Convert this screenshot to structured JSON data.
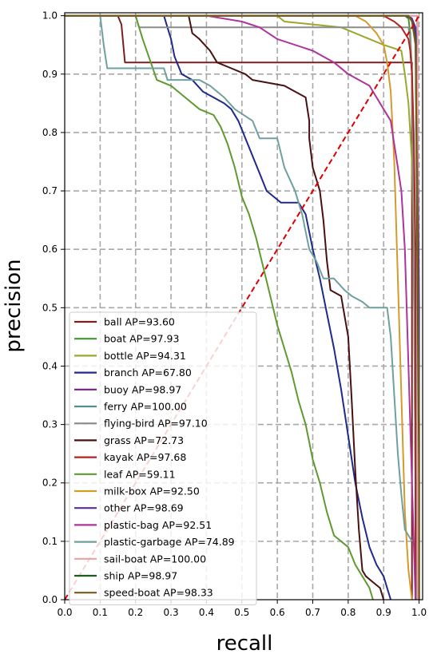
{
  "chart_data": {
    "type": "line",
    "xlabel": "recall",
    "ylabel": "precision",
    "xlim": [
      0,
      1.01
    ],
    "ylim": [
      0,
      1.005
    ],
    "grid": true,
    "legend_position": "lower-left",
    "x_ticks": [
      "0.0",
      "0.1",
      "0.2",
      "0.3",
      "0.4",
      "0.5",
      "0.6",
      "0.7",
      "0.8",
      "0.9",
      "1.0"
    ],
    "y_ticks": [
      "0.0",
      "0.1",
      "0.2",
      "0.3",
      "0.4",
      "0.5",
      "0.6",
      "0.7",
      "0.8",
      "0.9",
      "1.0"
    ],
    "diagonal": {
      "color": "#dd0000",
      "points": [
        [
          0,
          0
        ],
        [
          1,
          1
        ]
      ]
    },
    "series": [
      {
        "name": "ball",
        "legend_label": "ball AP=93.60",
        "color": "#7b1f1f",
        "points": [
          [
            0,
            1.0
          ],
          [
            0.15,
            1.0
          ],
          [
            0.16,
            0.985
          ],
          [
            0.17,
            0.92
          ],
          [
            0.98,
            0.92
          ],
          [
            0.98,
            0.0
          ]
        ]
      },
      {
        "name": "boat",
        "legend_label": "boat AP=97.93",
        "color": "#3c9a2c",
        "points": [
          [
            0,
            1.0
          ],
          [
            0.96,
            1.0
          ],
          [
            0.97,
            0.995
          ],
          [
            0.975,
            0.97
          ],
          [
            0.98,
            0.9
          ],
          [
            0.985,
            0.6
          ],
          [
            0.99,
            0.2
          ],
          [
            0.99,
            0.0
          ]
        ]
      },
      {
        "name": "bottle",
        "legend_label": "bottle AP=94.31",
        "color": "#9aa82b",
        "points": [
          [
            0,
            1.0
          ],
          [
            0.6,
            1.0
          ],
          [
            0.62,
            0.99
          ],
          [
            0.7,
            0.985
          ],
          [
            0.78,
            0.98
          ],
          [
            0.8,
            0.975
          ],
          [
            0.82,
            0.97
          ],
          [
            0.86,
            0.96
          ],
          [
            0.9,
            0.95
          ],
          [
            0.95,
            0.94
          ],
          [
            0.96,
            0.9
          ],
          [
            0.97,
            0.85
          ],
          [
            0.98,
            0.75
          ],
          [
            0.985,
            0.6
          ],
          [
            0.99,
            0.2
          ],
          [
            0.99,
            0.0
          ]
        ]
      },
      {
        "name": "branch",
        "legend_label": "branch AP=67.80",
        "color": "#1f2a8a",
        "points": [
          [
            0,
            1.0
          ],
          [
            0.28,
            1.0
          ],
          [
            0.29,
            0.98
          ],
          [
            0.3,
            0.96
          ],
          [
            0.31,
            0.93
          ],
          [
            0.33,
            0.9
          ],
          [
            0.36,
            0.89
          ],
          [
            0.39,
            0.87
          ],
          [
            0.42,
            0.86
          ],
          [
            0.45,
            0.85
          ],
          [
            0.47,
            0.84
          ],
          [
            0.49,
            0.82
          ],
          [
            0.51,
            0.79
          ],
          [
            0.53,
            0.76
          ],
          [
            0.55,
            0.73
          ],
          [
            0.57,
            0.7
          ],
          [
            0.59,
            0.69
          ],
          [
            0.61,
            0.68
          ],
          [
            0.66,
            0.68
          ],
          [
            0.68,
            0.66
          ],
          [
            0.7,
            0.6
          ],
          [
            0.72,
            0.55
          ],
          [
            0.74,
            0.49
          ],
          [
            0.76,
            0.43
          ],
          [
            0.78,
            0.36
          ],
          [
            0.8,
            0.28
          ],
          [
            0.82,
            0.2
          ],
          [
            0.84,
            0.14
          ],
          [
            0.86,
            0.09
          ],
          [
            0.88,
            0.06
          ],
          [
            0.9,
            0.04
          ],
          [
            0.91,
            0.02
          ],
          [
            0.92,
            0.0
          ]
        ]
      },
      {
        "name": "buoy",
        "legend_label": "buoy AP=98.97",
        "color": "#7a1d8c",
        "points": [
          [
            0,
            1.0
          ],
          [
            0.97,
            1.0
          ],
          [
            0.98,
            0.995
          ],
          [
            0.99,
            0.97
          ],
          [
            0.995,
            0.8
          ],
          [
            1.0,
            0.3
          ],
          [
            1.0,
            0.0
          ]
        ]
      },
      {
        "name": "ferry",
        "legend_label": "ferry AP=100.00",
        "color": "#4f8f8f",
        "points": [
          [
            0,
            1.0
          ],
          [
            0.995,
            1.0
          ],
          [
            0.995,
            0.0
          ]
        ]
      },
      {
        "name": "flying-bird",
        "legend_label": "flying-bird AP=97.10",
        "color": "#8c8c8c",
        "points": [
          [
            0,
            1.0
          ],
          [
            0.2,
            1.0
          ],
          [
            0.21,
            0.98
          ],
          [
            0.97,
            0.98
          ],
          [
            0.975,
            0.96
          ],
          [
            0.98,
            0.9
          ],
          [
            0.985,
            0.6
          ],
          [
            0.99,
            0.2
          ],
          [
            0.99,
            0.0
          ]
        ]
      },
      {
        "name": "grass",
        "legend_label": "grass AP=72.73",
        "color": "#4a1010",
        "points": [
          [
            0,
            1.0
          ],
          [
            0.35,
            1.0
          ],
          [
            0.36,
            0.97
          ],
          [
            0.38,
            0.96
          ],
          [
            0.41,
            0.94
          ],
          [
            0.43,
            0.92
          ],
          [
            0.47,
            0.91
          ],
          [
            0.51,
            0.9
          ],
          [
            0.53,
            0.89
          ],
          [
            0.62,
            0.88
          ],
          [
            0.68,
            0.86
          ],
          [
            0.69,
            0.82
          ],
          [
            0.69,
            0.79
          ],
          [
            0.7,
            0.74
          ],
          [
            0.72,
            0.7
          ],
          [
            0.73,
            0.65
          ],
          [
            0.74,
            0.58
          ],
          [
            0.75,
            0.53
          ],
          [
            0.78,
            0.52
          ],
          [
            0.8,
            0.45
          ],
          [
            0.81,
            0.34
          ],
          [
            0.82,
            0.22
          ],
          [
            0.83,
            0.12
          ],
          [
            0.84,
            0.05
          ],
          [
            0.85,
            0.04
          ],
          [
            0.87,
            0.03
          ],
          [
            0.89,
            0.02
          ],
          [
            0.9,
            0.0
          ]
        ]
      },
      {
        "name": "kayak",
        "legend_label": "kayak AP=97.68",
        "color": "#b22222",
        "points": [
          [
            0,
            1.0
          ],
          [
            0.9,
            1.0
          ],
          [
            0.93,
            0.99
          ],
          [
            0.95,
            0.98
          ],
          [
            0.97,
            0.96
          ],
          [
            0.975,
            0.94
          ],
          [
            0.98,
            0.9
          ],
          [
            0.985,
            0.8
          ],
          [
            0.99,
            0.6
          ],
          [
            0.99,
            0.0
          ]
        ]
      },
      {
        "name": "leaf",
        "legend_label": "leaf AP=59.11",
        "color": "#5f9a30",
        "points": [
          [
            0,
            1.0
          ],
          [
            0.2,
            1.0
          ],
          [
            0.22,
            0.96
          ],
          [
            0.26,
            0.89
          ],
          [
            0.3,
            0.88
          ],
          [
            0.34,
            0.86
          ],
          [
            0.38,
            0.84
          ],
          [
            0.42,
            0.83
          ],
          [
            0.44,
            0.81
          ],
          [
            0.46,
            0.78
          ],
          [
            0.48,
            0.74
          ],
          [
            0.5,
            0.69
          ],
          [
            0.52,
            0.66
          ],
          [
            0.54,
            0.62
          ],
          [
            0.56,
            0.57
          ],
          [
            0.58,
            0.52
          ],
          [
            0.6,
            0.47
          ],
          [
            0.62,
            0.43
          ],
          [
            0.64,
            0.39
          ],
          [
            0.66,
            0.34
          ],
          [
            0.68,
            0.3
          ],
          [
            0.7,
            0.24
          ],
          [
            0.72,
            0.2
          ],
          [
            0.74,
            0.15
          ],
          [
            0.76,
            0.11
          ],
          [
            0.8,
            0.09
          ],
          [
            0.82,
            0.06
          ],
          [
            0.84,
            0.04
          ],
          [
            0.86,
            0.02
          ],
          [
            0.87,
            0.0
          ]
        ]
      },
      {
        "name": "milk-box",
        "legend_label": "milk-box AP=92.50",
        "color": "#d49a2a",
        "points": [
          [
            0,
            1.0
          ],
          [
            0.82,
            1.0
          ],
          [
            0.85,
            0.99
          ],
          [
            0.88,
            0.97
          ],
          [
            0.9,
            0.95
          ],
          [
            0.91,
            0.92
          ],
          [
            0.92,
            0.87
          ],
          [
            0.93,
            0.75
          ],
          [
            0.94,
            0.55
          ],
          [
            0.95,
            0.35
          ],
          [
            0.96,
            0.15
          ],
          [
            0.97,
            0.05
          ],
          [
            0.98,
            0.0
          ]
        ]
      },
      {
        "name": "other",
        "legend_label": "other AP=98.69",
        "color": "#5a2d9c",
        "points": [
          [
            0,
            1.0
          ],
          [
            0.96,
            1.0
          ],
          [
            0.98,
            0.995
          ],
          [
            0.99,
            0.98
          ],
          [
            0.995,
            0.9
          ],
          [
            1.0,
            0.5
          ],
          [
            1.0,
            0.0
          ]
        ]
      },
      {
        "name": "plastic-bag",
        "legend_label": "plastic-bag AP=92.51",
        "color": "#b0329b",
        "points": [
          [
            0,
            1.0
          ],
          [
            0.4,
            1.0
          ],
          [
            0.5,
            0.99
          ],
          [
            0.55,
            0.98
          ],
          [
            0.6,
            0.96
          ],
          [
            0.7,
            0.94
          ],
          [
            0.76,
            0.92
          ],
          [
            0.8,
            0.9
          ],
          [
            0.86,
            0.88
          ],
          [
            0.88,
            0.86
          ],
          [
            0.9,
            0.84
          ],
          [
            0.92,
            0.82
          ],
          [
            0.93,
            0.78
          ],
          [
            0.94,
            0.74
          ],
          [
            0.95,
            0.7
          ],
          [
            0.96,
            0.6
          ],
          [
            0.97,
            0.4
          ],
          [
            0.98,
            0.2
          ],
          [
            0.985,
            0.1
          ],
          [
            0.99,
            0.0
          ]
        ]
      },
      {
        "name": "plastic-garbage",
        "legend_label": "plastic-garbage AP=74.89",
        "color": "#6fa0a0",
        "points": [
          [
            0,
            1.0
          ],
          [
            0.1,
            1.0
          ],
          [
            0.11,
            0.95
          ],
          [
            0.12,
            0.91
          ],
          [
            0.28,
            0.91
          ],
          [
            0.29,
            0.89
          ],
          [
            0.38,
            0.89
          ],
          [
            0.41,
            0.88
          ],
          [
            0.45,
            0.86
          ],
          [
            0.48,
            0.84
          ],
          [
            0.53,
            0.82
          ],
          [
            0.55,
            0.79
          ],
          [
            0.6,
            0.79
          ],
          [
            0.62,
            0.74
          ],
          [
            0.65,
            0.7
          ],
          [
            0.67,
            0.66
          ],
          [
            0.69,
            0.6
          ],
          [
            0.71,
            0.58
          ],
          [
            0.73,
            0.55
          ],
          [
            0.76,
            0.55
          ],
          [
            0.79,
            0.53
          ],
          [
            0.81,
            0.52
          ],
          [
            0.84,
            0.51
          ],
          [
            0.86,
            0.5
          ],
          [
            0.88,
            0.5
          ],
          [
            0.91,
            0.5
          ],
          [
            0.92,
            0.45
          ],
          [
            0.93,
            0.35
          ],
          [
            0.94,
            0.25
          ],
          [
            0.95,
            0.18
          ],
          [
            0.96,
            0.12
          ],
          [
            0.97,
            0.11
          ],
          [
            0.98,
            0.1
          ]
        ]
      },
      {
        "name": "sail-boat",
        "legend_label": "sail-boat AP=100.00",
        "color": "#e8a3a3",
        "points": [
          [
            0,
            1.0
          ],
          [
            0.996,
            1.0
          ],
          [
            0.996,
            0.0
          ]
        ]
      },
      {
        "name": "ship",
        "legend_label": "ship AP=98.97",
        "color": "#1e5c1e",
        "points": [
          [
            0,
            1.0
          ],
          [
            0.97,
            1.0
          ],
          [
            0.98,
            0.99
          ],
          [
            0.99,
            0.96
          ],
          [
            0.995,
            0.6
          ],
          [
            1.0,
            0.2
          ],
          [
            1.0,
            0.0
          ]
        ]
      },
      {
        "name": "speed-boat",
        "legend_label": "speed-boat AP=98.33",
        "color": "#7a5a1a",
        "points": [
          [
            0,
            1.0
          ],
          [
            0.97,
            1.0
          ],
          [
            0.98,
            0.99
          ],
          [
            0.99,
            0.95
          ],
          [
            0.995,
            0.7
          ],
          [
            1.0,
            0.3
          ],
          [
            1.0,
            0.0
          ]
        ]
      }
    ]
  }
}
